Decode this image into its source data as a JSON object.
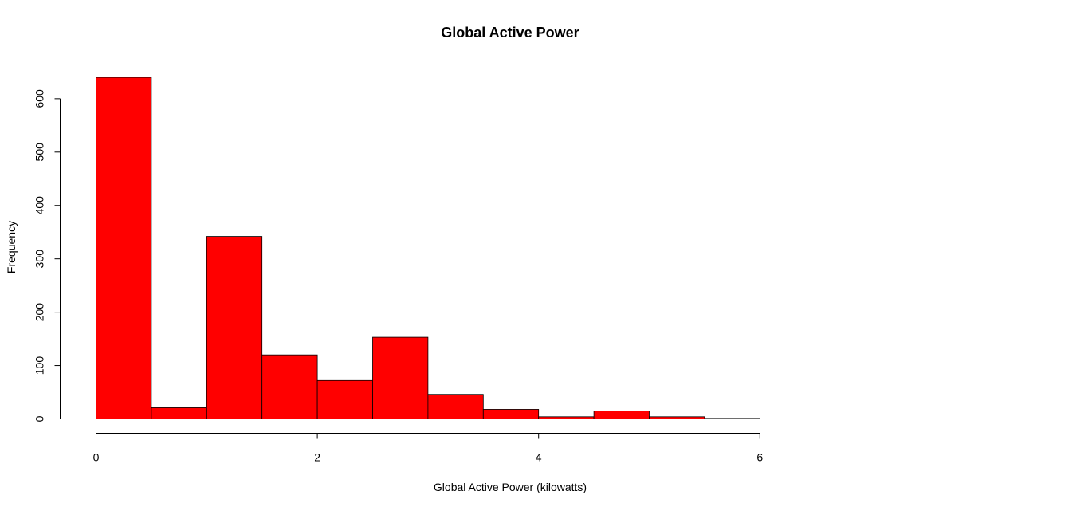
{
  "chart_data": {
    "type": "bar",
    "title": "Global Active Power",
    "xlabel": "Global Active Power (kilowatts)",
    "ylabel": "Frequency",
    "bin_edges": [
      0,
      0.5,
      1,
      1.5,
      2,
      2.5,
      3,
      3.5,
      4,
      4.5,
      5,
      5.5,
      6,
      6.5,
      7,
      7.5
    ],
    "values": [
      640,
      21,
      342,
      120,
      72,
      153,
      46,
      18,
      4,
      15,
      4,
      1,
      0,
      0,
      0
    ],
    "xticks": [
      0,
      2,
      4,
      6
    ],
    "yticks": [
      0,
      100,
      200,
      300,
      400,
      500,
      600
    ],
    "xlim": [
      0,
      7.5
    ],
    "ylim": [
      0,
      640
    ],
    "grid": false,
    "bar_color": "#FF0000",
    "bar_border_color": "#000000"
  }
}
